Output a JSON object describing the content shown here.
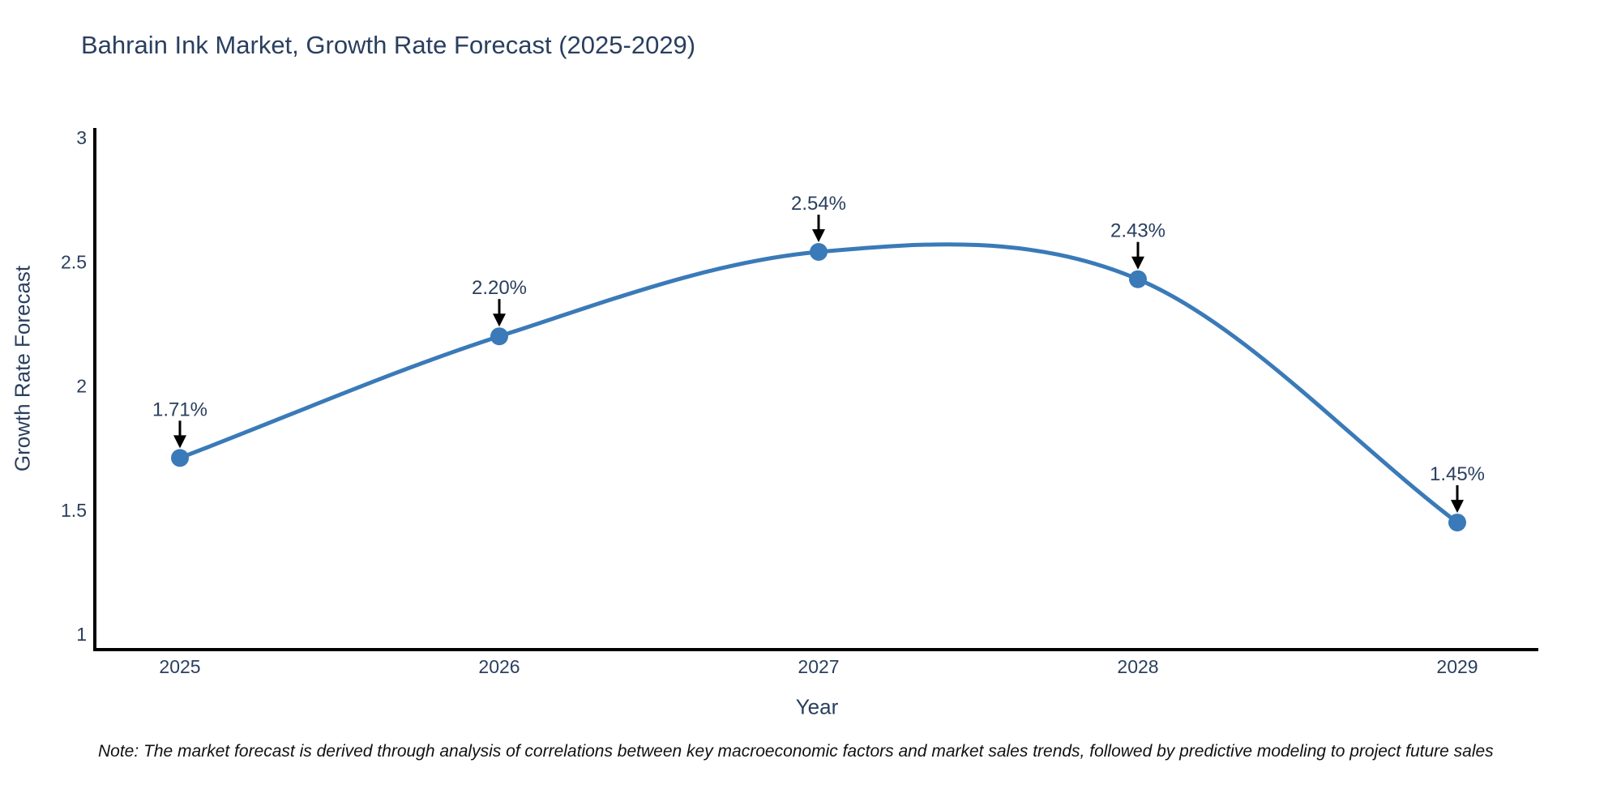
{
  "title": "Bahrain Ink Market, Growth Rate Forecast (2025-2029)",
  "note": "Note: The market forecast is derived through analysis of correlations between key macroeconomic factors and market sales trends, followed by predictive modeling to project future sales",
  "chart_data": {
    "type": "line",
    "title": "Bahrain Ink Market, Growth Rate Forecast (2025-2029)",
    "xlabel": "Year",
    "ylabel": "Growth Rate Forecast",
    "categories": [
      "2025",
      "2026",
      "2027",
      "2028",
      "2029"
    ],
    "series": [
      {
        "name": "Growth Rate Forecast",
        "values": [
          1.71,
          2.2,
          2.54,
          2.43,
          1.45
        ]
      }
    ],
    "point_labels": [
      "1.71%",
      "2.20%",
      "2.54%",
      "2.43%",
      "1.45%"
    ],
    "ytick_values": [
      1,
      1.5,
      2,
      2.5,
      3
    ],
    "ytick_labels": [
      "1",
      "1.5",
      "2",
      "2.5",
      "3"
    ],
    "ylim": [
      0.94,
      3.03
    ],
    "grid": false,
    "legend_position": "none",
    "line_style": "spline",
    "colors": {
      "line": "#3a7ab8",
      "marker": "#3a7ab8",
      "axis_line": "#000000",
      "text": "#2a3f5f",
      "annotation_arrow": "#000000",
      "background": "#ffffff"
    }
  }
}
